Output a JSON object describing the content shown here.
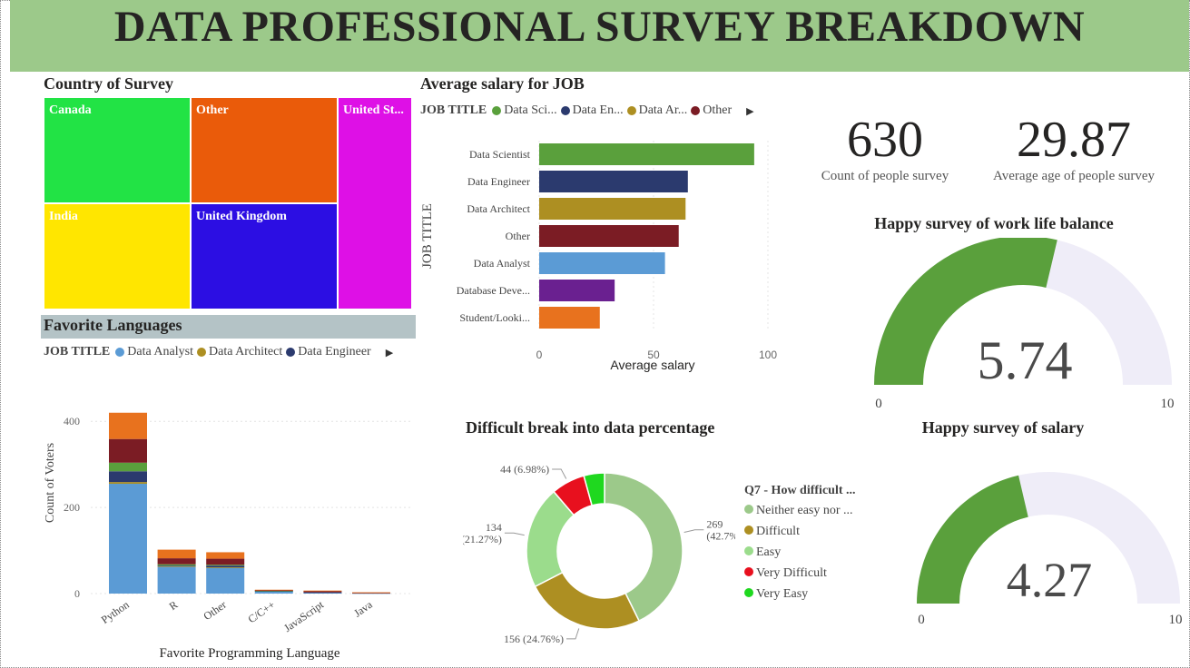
{
  "page_title": "DATA PROFESSIONAL SURVEY BREAKDOWN",
  "colors": {
    "banner": "#9cc98a",
    "gauge_fill": "#5aa03c",
    "gauge_track": "#efedf8"
  },
  "country": {
    "title": "Country of Survey",
    "tiles": [
      {
        "label": "Canada",
        "color": "#22e345"
      },
      {
        "label": "Other",
        "color": "#ea5b0a"
      },
      {
        "label": "United St...",
        "color": "#de10e6"
      },
      {
        "label": "India",
        "color": "#ffe600"
      },
      {
        "label": "United Kingdom",
        "color": "#2c0ee3"
      }
    ]
  },
  "job_salary": {
    "title": "Average salary for JOB",
    "legend_head": "JOB TITLE",
    "legend_items": [
      {
        "label": "Data Sci...",
        "color": "#5aa03c"
      },
      {
        "label": "Data En...",
        "color": "#2b3a6e"
      },
      {
        "label": "Data Ar...",
        "color": "#ad8f22"
      },
      {
        "label": "Other",
        "color": "#7b1c24"
      }
    ],
    "y_axis_title": "JOB TITLE",
    "x_axis_title": "Average salary"
  },
  "cards": {
    "count_value": "630",
    "count_label": "Count of people survey",
    "age_value": "29.87",
    "age_label": "Average age of people survey"
  },
  "gauge_wlb": {
    "title": "Happy survey of work life balance",
    "value_label": "5.74",
    "min_label": "0",
    "max_label": "10"
  },
  "gauge_salary": {
    "title": "Happy survey of salary",
    "value_label": "4.27",
    "min_label": "0",
    "max_label": "10"
  },
  "languages": {
    "title": "Favorite Languages",
    "legend_head": "JOB TITLE",
    "legend_items": [
      {
        "label": "Data Analyst",
        "color": "#5b9bd5"
      },
      {
        "label": "Data Architect",
        "color": "#ad8f22"
      },
      {
        "label": "Data Engineer",
        "color": "#2b3a6e"
      }
    ],
    "y_axis_title": "Count of Voters",
    "x_axis_title": "Favorite Programming Language"
  },
  "difficulty": {
    "title": "Difficult break into data percentage",
    "legend_head": "Q7 - How difficult ...",
    "legend_items": [
      {
        "label": "Neither easy nor ...",
        "color": "#9cc98a"
      },
      {
        "label": "Difficult",
        "color": "#ad8f22"
      },
      {
        "label": "Easy",
        "color": "#9bdc8c"
      },
      {
        "label": "Very Difficult",
        "color": "#e8101e"
      },
      {
        "label": "Very Easy",
        "color": "#1fd81f"
      }
    ]
  },
  "chart_data": [
    {
      "type": "treemap",
      "title": "Country of Survey",
      "categories": [
        "Canada",
        "Other",
        "United St...",
        "India",
        "United Kingdom"
      ]
    },
    {
      "type": "bar",
      "orientation": "horizontal",
      "title": "Average salary for JOB",
      "ylabel": "JOB TITLE",
      "xlabel": "Average salary",
      "xlim": [
        0,
        100
      ],
      "xticks": [
        0,
        50,
        100
      ],
      "categories": [
        "Data Scientist",
        "Data Engineer",
        "Data Architect",
        "Other",
        "Data Analyst",
        "Database Deve...",
        "Student/Looki..."
      ],
      "values": [
        94,
        65,
        64,
        61,
        55,
        33,
        26.5
      ],
      "colors": [
        "#5aa03c",
        "#2b3a6e",
        "#ad8f22",
        "#7b1c24",
        "#5b9bd5",
        "#6a2090",
        "#e8721e"
      ]
    },
    {
      "type": "bar",
      "stacked": true,
      "title": "Favorite Languages",
      "xlabel": "Favorite Programming Language",
      "ylabel": "Count of Voters",
      "ylim": [
        0,
        430
      ],
      "yticks": [
        0,
        200,
        400
      ],
      "categories": [
        "Python",
        "R",
        "Other",
        "C/C++",
        "JavaScript",
        "Java"
      ],
      "series": [
        {
          "name": "Data Analyst",
          "color": "#5b9bd5",
          "values": [
            255,
            62,
            60,
            5,
            2,
            1
          ]
        },
        {
          "name": "Data Architect",
          "color": "#ad8f22",
          "values": [
            4,
            2,
            1,
            0,
            0,
            0
          ]
        },
        {
          "name": "Data Engineer",
          "color": "#2b3a6e",
          "values": [
            25,
            1,
            4,
            1,
            1,
            0
          ]
        },
        {
          "color": "#5aa03c",
          "values": [
            20,
            3,
            2,
            1,
            0,
            0
          ]
        },
        {
          "color": "#7b1c24",
          "values": [
            55,
            14,
            14,
            1,
            3,
            1
          ]
        },
        {
          "color": "#e8721e",
          "values": [
            61,
            20,
            15,
            1,
            1,
            1
          ]
        }
      ]
    },
    {
      "type": "pie",
      "donut": true,
      "title": "Difficult break into data percentage",
      "slices": [
        {
          "label": "Neither easy nor ...",
          "value": 269,
          "text": "269\n(42.7%)",
          "color": "#9cc98a"
        },
        {
          "label": "Difficult",
          "value": 156,
          "text": "156 (24.76%)",
          "color": "#ad8f22"
        },
        {
          "label": "Easy",
          "value": 134,
          "text": "134\n(21.27%)",
          "color": "#9bdc8c"
        },
        {
          "label": "Very Difficult",
          "value": 44,
          "text": "44 (6.98%)",
          "color": "#e8101e"
        },
        {
          "label": "Very Easy",
          "value": 27,
          "color": "#1fd81f"
        }
      ]
    },
    {
      "type": "gauge",
      "title": "Happy survey of work life balance",
      "value": 5.74,
      "min": 0,
      "max": 10
    },
    {
      "type": "gauge",
      "title": "Happy survey of salary",
      "value": 4.27,
      "min": 0,
      "max": 10
    }
  ]
}
